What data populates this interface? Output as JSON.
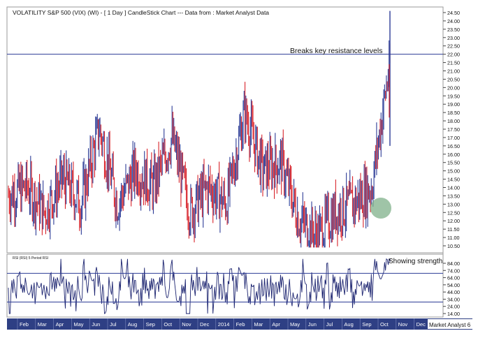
{
  "chart_data": [
    {
      "type": "candlestick",
      "title": "VOLATILITY S&P 500 (VIX) (WI) - [ 1 Day ] CandleStick Chart --- Data from : Market Analyst Data",
      "annotation": "Breaks key resistance levels",
      "resistance_level": 22.0,
      "ylim": [
        10.0,
        25.0
      ],
      "y_ticks": [
        "24.50",
        "24.00",
        "23.50",
        "23.00",
        "22.50",
        "22.00",
        "21.50",
        "21.00",
        "20.50",
        "20.00",
        "19.50",
        "19.00",
        "18.50",
        "18.00",
        "17.50",
        "17.00",
        "16.50",
        "16.00",
        "15.50",
        "15.00",
        "14.50",
        "14.00",
        "13.50",
        "13.00",
        "12.50",
        "12.00",
        "11.50",
        "11.00",
        "10.50"
      ],
      "colors": {
        "up": "#2c3b96",
        "down": "#d8222a",
        "resistance": "#2c3b96",
        "highlight": "#7fb08a"
      },
      "approx_closes": [
        {
          "x": "2013-01",
          "y": 13.5
        },
        {
          "x": "2013-02",
          "y": 14.0
        },
        {
          "x": "2013-03",
          "y": 12.5
        },
        {
          "x": "2013-04",
          "y": 14.5
        },
        {
          "x": "2013-05",
          "y": 13.0
        },
        {
          "x": "2013-06",
          "y": 17.5
        },
        {
          "x": "2013-07",
          "y": 13.0
        },
        {
          "x": "2013-08",
          "y": 15.0
        },
        {
          "x": "2013-09",
          "y": 14.0
        },
        {
          "x": "2013-10",
          "y": 17.0
        },
        {
          "x": "2013-11",
          "y": 12.5
        },
        {
          "x": "2013-12",
          "y": 14.0
        },
        {
          "x": "2014-01",
          "y": 13.0
        },
        {
          "x": "2014-02",
          "y": 18.5
        },
        {
          "x": "2014-03",
          "y": 15.0
        },
        {
          "x": "2014-04",
          "y": 15.5
        },
        {
          "x": "2014-05",
          "y": 12.0
        },
        {
          "x": "2014-06",
          "y": 11.0
        },
        {
          "x": "2014-07",
          "y": 12.5
        },
        {
          "x": "2014-08",
          "y": 13.0
        },
        {
          "x": "2014-09",
          "y": 14.0
        },
        {
          "x": "2014-10",
          "y": 21.5
        }
      ],
      "final_spike": {
        "high": 24.6,
        "low": 16.5,
        "close": 21.4
      }
    },
    {
      "type": "line",
      "title": "RSI (RSI) 5 Period RSI",
      "annotation": "Showing strength",
      "ylim": [
        10,
        90
      ],
      "y_ticks": [
        "84.00",
        "74.00",
        "64.00",
        "54.00",
        "44.00",
        "34.00",
        "24.00",
        "14.00"
      ],
      "reference_levels": [
        70,
        30
      ]
    }
  ],
  "x_axis": {
    "months": [
      "Feb",
      "Mar",
      "Apr",
      "May",
      "Jun",
      "Jul",
      "Aug",
      "Sep",
      "Oct",
      "Nov",
      "Dec",
      "2014",
      "Feb",
      "Mar",
      "Apr",
      "May",
      "Jun",
      "Jul",
      "Aug",
      "Sep",
      "Oct",
      "Nov",
      "Dec"
    ]
  },
  "footer": {
    "brand": "Market Analyst 6"
  }
}
